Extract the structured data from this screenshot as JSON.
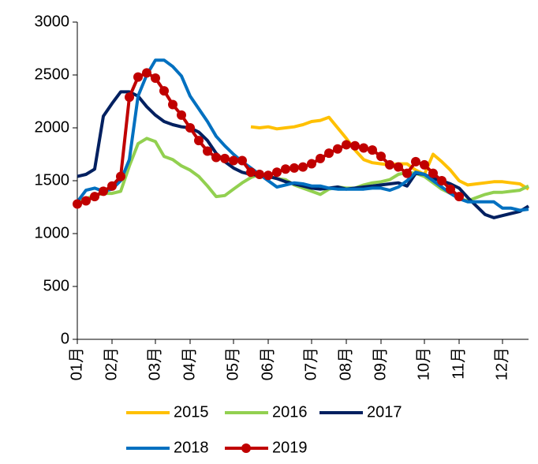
{
  "chart_data": {
    "type": "line",
    "categories": [
      "01月",
      null,
      null,
      null,
      "02月",
      null,
      null,
      null,
      null,
      "03月",
      null,
      null,
      null,
      "04月",
      null,
      null,
      null,
      null,
      "05月",
      null,
      null,
      null,
      "06月",
      null,
      null,
      null,
      null,
      "07月",
      null,
      null,
      null,
      "08月",
      null,
      null,
      null,
      "09月",
      null,
      null,
      null,
      null,
      "10月",
      null,
      null,
      null,
      "11月",
      null,
      null,
      null,
      null,
      "12月",
      null,
      null,
      null
    ],
    "series": [
      {
        "name": "2015",
        "color": "#FFC000",
        "values": [
          null,
          null,
          null,
          null,
          null,
          null,
          null,
          null,
          null,
          null,
          null,
          null,
          null,
          null,
          null,
          null,
          null,
          null,
          null,
          null,
          2010,
          2000,
          2010,
          1990,
          2000,
          2010,
          2030,
          2060,
          2070,
          2100,
          2000,
          1900,
          1790,
          1700,
          1670,
          1660,
          1650,
          1660,
          1660,
          1600,
          1560,
          1750,
          1680,
          1600,
          1500,
          1460,
          1470,
          1480,
          1490,
          1490,
          1480,
          1470,
          1420
        ]
      },
      {
        "name": "2016",
        "color": "#92D050",
        "values": [
          1300,
          1330,
          1360,
          1380,
          1380,
          1400,
          1640,
          1850,
          1900,
          1870,
          1730,
          1700,
          1640,
          1600,
          1540,
          1450,
          1350,
          1360,
          1420,
          1480,
          1530,
          1560,
          1540,
          1520,
          1510,
          1460,
          1430,
          1400,
          1370,
          1420,
          1440,
          1430,
          1430,
          1460,
          1480,
          1490,
          1510,
          1560,
          1580,
          1570,
          1540,
          1480,
          1420,
          1380,
          1330,
          1310,
          1340,
          1370,
          1390,
          1390,
          1400,
          1410,
          1450
        ]
      },
      {
        "name": "2017",
        "color": "#002060",
        "values": [
          1540,
          1560,
          1610,
          2110,
          2230,
          2340,
          2340,
          2300,
          2200,
          2120,
          2060,
          2030,
          2010,
          2000,
          1960,
          1880,
          1760,
          1680,
          1620,
          1580,
          1560,
          1550,
          1540,
          1520,
          1490,
          1470,
          1450,
          1430,
          1420,
          1430,
          1440,
          1420,
          1430,
          1440,
          1450,
          1460,
          1470,
          1480,
          1450,
          1570,
          1560,
          1520,
          1500,
          1470,
          1430,
          1340,
          1260,
          1180,
          1150,
          1170,
          1190,
          1210,
          1260
        ]
      },
      {
        "name": "2018",
        "color": "#0070C0",
        "values": [
          1300,
          1410,
          1430,
          1400,
          1420,
          1500,
          1700,
          2300,
          2500,
          2640,
          2640,
          2580,
          2490,
          2300,
          2180,
          2060,
          1920,
          1830,
          1750,
          1680,
          1620,
          1560,
          1500,
          1440,
          1460,
          1480,
          1470,
          1450,
          1450,
          1430,
          1420,
          1420,
          1420,
          1420,
          1430,
          1430,
          1410,
          1440,
          1500,
          1580,
          1560,
          1500,
          1440,
          1380,
          1330,
          1300,
          1300,
          1300,
          1300,
          1240,
          1240,
          1220,
          1230
        ]
      },
      {
        "name": "2019",
        "color": "#C00000",
        "marker": "circle",
        "values": [
          1280,
          1310,
          1350,
          1400,
          1450,
          1540,
          2290,
          2480,
          2520,
          2470,
          2350,
          2220,
          2120,
          2000,
          1880,
          1780,
          1720,
          1710,
          1690,
          1690,
          1580,
          1560,
          1550,
          1580,
          1610,
          1620,
          1630,
          1660,
          1710,
          1760,
          1800,
          1840,
          1830,
          1810,
          1790,
          1730,
          1650,
          1630,
          1570,
          1680,
          1650,
          1570,
          1500,
          1420,
          1350,
          null,
          null,
          null,
          null,
          null,
          null,
          null,
          null
        ]
      }
    ],
    "ylim": [
      0,
      3000
    ],
    "yticks": [
      0,
      500,
      1000,
      1500,
      2000,
      2500,
      3000
    ],
    "grid": false
  }
}
